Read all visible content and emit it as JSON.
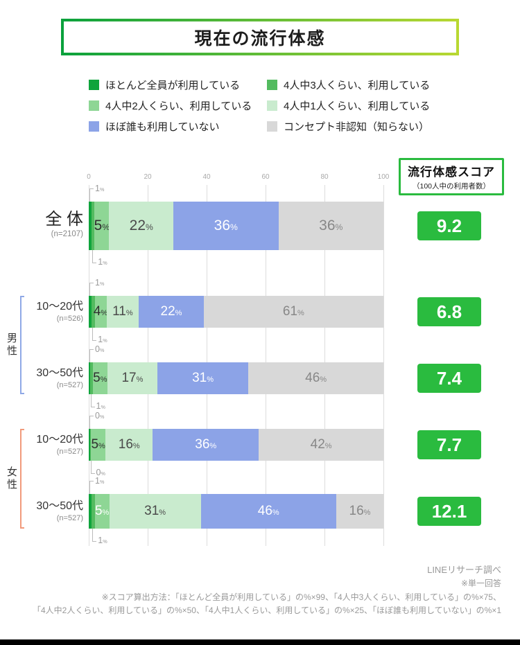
{
  "title": "現在の流行体感",
  "score_header": {
    "title": "流行体感スコア",
    "subtitle": "（100人中の利用者数）"
  },
  "footer": {
    "source": "LINEリサーチ調べ",
    "note1": "※単一回答",
    "note2": "※スコア算出方法：「ほとんど全員が利用している」の%×99、「4人中3人くらい、利用している」の%×75、",
    "note3": "「4人中2人くらい、利用している」の%×50、「4人中1人くらい、利用している」の%×25、「ほぼ誰も利用していない」の%×1"
  },
  "chart_data": {
    "type": "bar",
    "stacked": true,
    "orientation": "horizontal",
    "value_unit": "%",
    "x_axis": {
      "ticks": [
        0,
        20,
        40,
        60,
        80,
        100
      ],
      "max": 100
    },
    "series": [
      {
        "label": "ほとんど全員が利用している",
        "color": "#0fa43c"
      },
      {
        "label": "4人中3人くらい、利用している",
        "color": "#53bb5f"
      },
      {
        "label": "4人中2人くらい、利用している",
        "color": "#8ed695"
      },
      {
        "label": "4人中1人くらい、利用している",
        "color": "#c9ebce"
      },
      {
        "label": "ほぼ誰も利用していない",
        "color": "#8ca3e7"
      },
      {
        "label": "コンセプト非認知（知らない）",
        "color": "#d8d8d8"
      }
    ],
    "rows": [
      {
        "group": "",
        "label": "全 体",
        "n": "(n=2107)",
        "values": [
          1,
          1,
          5,
          22,
          36,
          36
        ],
        "score": "9.2"
      },
      {
        "group": "男性",
        "label": "10〜20代",
        "n": "(n=526)",
        "values": [
          1,
          1,
          4,
          11,
          22,
          61
        ],
        "score": "6.8"
      },
      {
        "group": "男性",
        "label": "30〜50代",
        "n": "(n=527)",
        "values": [
          0,
          1,
          5,
          17,
          31,
          46
        ],
        "score": "7.4"
      },
      {
        "group": "女性",
        "label": "10〜20代",
        "n": "(n=527)",
        "values": [
          0,
          0,
          5,
          16,
          36,
          42
        ],
        "score": "7.7"
      },
      {
        "group": "女性",
        "label": "30〜50代",
        "n": "(n=527)",
        "values": [
          1,
          1,
          5,
          31,
          46,
          16
        ],
        "score": "12.1",
        "first_inside_label_white": true
      }
    ],
    "groups": [
      {
        "label": "男性",
        "row_indexes": [
          1,
          2
        ],
        "bracket_color": "#8fa8e6"
      },
      {
        "label": "女性",
        "row_indexes": [
          3,
          4
        ],
        "bracket_color": "#f19a7b"
      }
    ]
  }
}
